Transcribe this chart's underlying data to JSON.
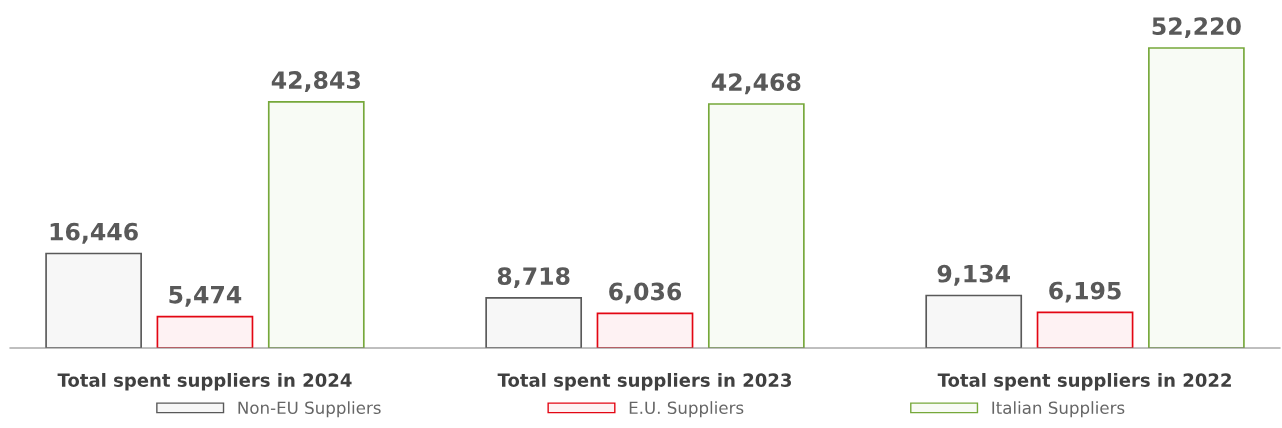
{
  "chart_data": {
    "type": "bar",
    "categories": [
      "Total spent suppliers in 2024",
      "Total spent suppliers in 2023",
      "Total spent suppliers in 2022"
    ],
    "series": [
      {
        "name": "Non-EU Suppliers",
        "color": "#595959",
        "values": [
          16446,
          8718,
          9134
        ],
        "value_labels": [
          "16,446",
          "8,718",
          "9,134"
        ]
      },
      {
        "name": "E.U. Suppliers",
        "color": "#e30613",
        "values": [
          5474,
          6036,
          6195
        ],
        "value_labels": [
          "5,474",
          "6,036",
          "6,195"
        ]
      },
      {
        "name": "Italian Suppliers",
        "color": "#76a83a",
        "values": [
          42843,
          42468,
          52220
        ],
        "value_labels": [
          "42,843",
          "42,468",
          "52,220"
        ]
      }
    ],
    "legend": "bottom",
    "grid": false,
    "tick_labels": "x"
  }
}
